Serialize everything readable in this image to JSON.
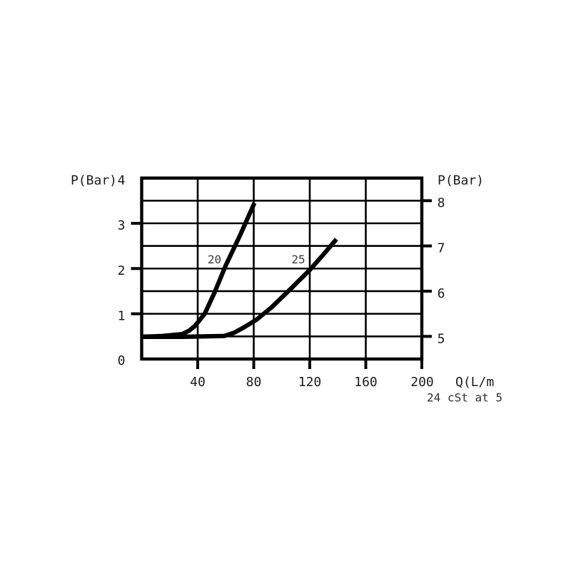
{
  "chart_data": {
    "type": "line",
    "title": "",
    "x_axis": {
      "label": "Q(L/m",
      "range": [
        0,
        200
      ],
      "tick_labels": [
        "40",
        "80",
        "120",
        "160",
        "200"
      ],
      "tick_values": [
        40,
        80,
        120,
        160,
        200
      ],
      "grid_step": 40
    },
    "y_axis_left": {
      "label": "P(Bar)",
      "range": [
        0,
        4
      ],
      "tick_labels": [
        "4",
        "3",
        "2",
        "1",
        "0"
      ],
      "tick_values": [
        4,
        3,
        2,
        1,
        0
      ],
      "tick_marks_at": [
        3,
        2,
        1
      ],
      "grid_step": 0.5
    },
    "y_axis_right": {
      "label": "P(Bar)",
      "tick_labels": [
        "8",
        "7",
        "6",
        "5"
      ],
      "tick_values": [
        8,
        7,
        6,
        5
      ],
      "offset_from_left_axis": 4.5
    },
    "grid": true,
    "legend": "inline-curve-labels",
    "footnote": "24 cSt at 5",
    "colors": {
      "curve": "#000000",
      "grid": "#000000",
      "axis_text": "#1b1b1b",
      "series_label": "#3d3d3d",
      "footnote": "#333333",
      "background": "#ffffff"
    },
    "series": [
      {
        "name": "curve-20",
        "label": "20",
        "label_anchor": {
          "q": 52,
          "p": 2.2
        },
        "points": [
          [
            0,
            0.49
          ],
          [
            15,
            0.51
          ],
          [
            29,
            0.55
          ],
          [
            34,
            0.63
          ],
          [
            38,
            0.73
          ],
          [
            45,
            1.0
          ],
          [
            52,
            1.47
          ],
          [
            60,
            2.07
          ],
          [
            70,
            2.72
          ],
          [
            80.5,
            3.45
          ]
        ]
      },
      {
        "name": "curve-25",
        "label": "25",
        "label_anchor": {
          "q": 112,
          "p": 2.2
        },
        "points": [
          [
            0,
            0.49
          ],
          [
            30,
            0.49
          ],
          [
            59,
            0.51
          ],
          [
            66,
            0.58
          ],
          [
            73,
            0.7
          ],
          [
            82,
            0.87
          ],
          [
            93,
            1.15
          ],
          [
            107,
            1.57
          ],
          [
            120,
            1.97
          ],
          [
            130,
            2.32
          ],
          [
            139,
            2.65
          ]
        ]
      }
    ]
  }
}
